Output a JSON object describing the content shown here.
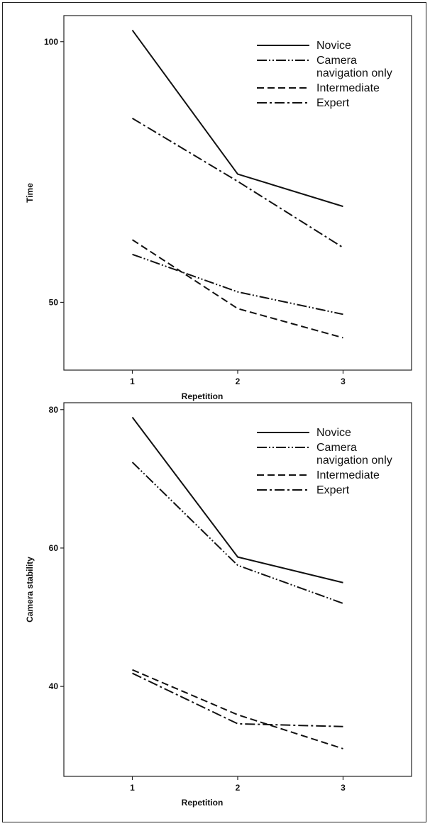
{
  "chart_data": [
    {
      "type": "line",
      "title": "",
      "xlabel": "Repetition",
      "ylabel": "Time",
      "x": [
        1,
        2,
        3
      ],
      "xlim": [
        0.35,
        3.65
      ],
      "ylim": [
        37,
        105
      ],
      "yticks": [
        50,
        100
      ],
      "xticks": [
        1,
        2,
        3
      ],
      "grid": false,
      "legend": "top-right",
      "series": [
        {
          "name": "Novice",
          "style": "solid",
          "values": [
            102.2,
            74.6,
            68.4
          ]
        },
        {
          "name": "Camera navigation only",
          "style": "dash-dot-dot",
          "values": [
            59.2,
            52.0,
            47.7
          ]
        },
        {
          "name": "Intermediate",
          "style": "dashed",
          "values": [
            62.0,
            48.8,
            43.2
          ]
        },
        {
          "name": "Expert",
          "style": "dash-dot",
          "values": [
            85.3,
            73.2,
            60.5
          ]
        }
      ]
    },
    {
      "type": "line",
      "title": "",
      "xlabel": "Repetition",
      "ylabel": "Camera stability",
      "x": [
        1,
        2,
        3
      ],
      "xlim": [
        0.35,
        3.65
      ],
      "ylim": [
        27,
        81
      ],
      "yticks": [
        40,
        60,
        80
      ],
      "xticks": [
        1,
        2,
        3
      ],
      "grid": false,
      "legend": "top-right",
      "series": [
        {
          "name": "Novice",
          "style": "solid",
          "values": [
            78.9,
            58.7,
            55.0
          ]
        },
        {
          "name": "Camera navigation only",
          "style": "dash-dot-dot",
          "values": [
            72.4,
            57.5,
            52.0
          ]
        },
        {
          "name": "Intermediate",
          "style": "dashed",
          "values": [
            42.4,
            35.9,
            31.0
          ]
        },
        {
          "name": "Expert",
          "style": "dash-dot",
          "values": [
            41.9,
            34.6,
            34.2
          ]
        }
      ],
      "legend_lines": [
        "Novice",
        "Camera",
        "navigation only",
        "Intermediate",
        "Expert"
      ]
    }
  ],
  "legend_labels": {
    "novice": "Novice",
    "camera_line1": "Camera",
    "camera_line2": "navigation only",
    "intermediate": "Intermediate",
    "expert": "Expert"
  }
}
